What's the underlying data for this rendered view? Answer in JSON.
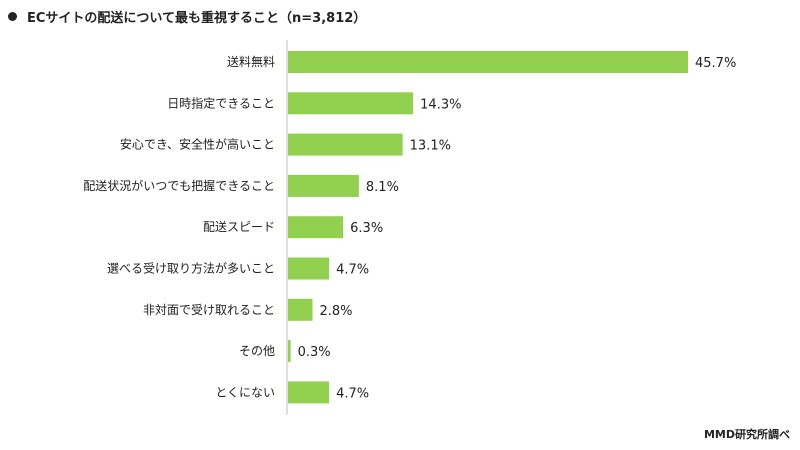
{
  "title": "ECサイトの配送について最も重視すること（n=3,812）",
  "credit": "MMD研究所調べ",
  "colors": {
    "bar": "#92d050",
    "axis": "#bfbfbf",
    "text": "#222222"
  },
  "chart_data": {
    "type": "bar",
    "orientation": "horizontal",
    "title": "ECサイトの配送について最も重視すること（n=3,812）",
    "categories": [
      "送料無料",
      "日時指定できること",
      "安心でき、安全性が高いこと",
      "配送状況がいつでも把握できること",
      "配送スピード",
      "選べる受け取り方法が多いこと",
      "非対面で受け取れること",
      "その他",
      "とくにない"
    ],
    "values": [
      45.7,
      14.3,
      13.1,
      8.1,
      6.3,
      4.7,
      2.8,
      0.3,
      4.7
    ],
    "value_labels": [
      "45.7%",
      "14.3%",
      "13.1%",
      "8.1%",
      "6.3%",
      "4.7%",
      "2.8%",
      "0.3%",
      "4.7%"
    ],
    "unit": "%",
    "xlim": [
      0,
      50
    ],
    "grid": false,
    "legend": "none"
  }
}
